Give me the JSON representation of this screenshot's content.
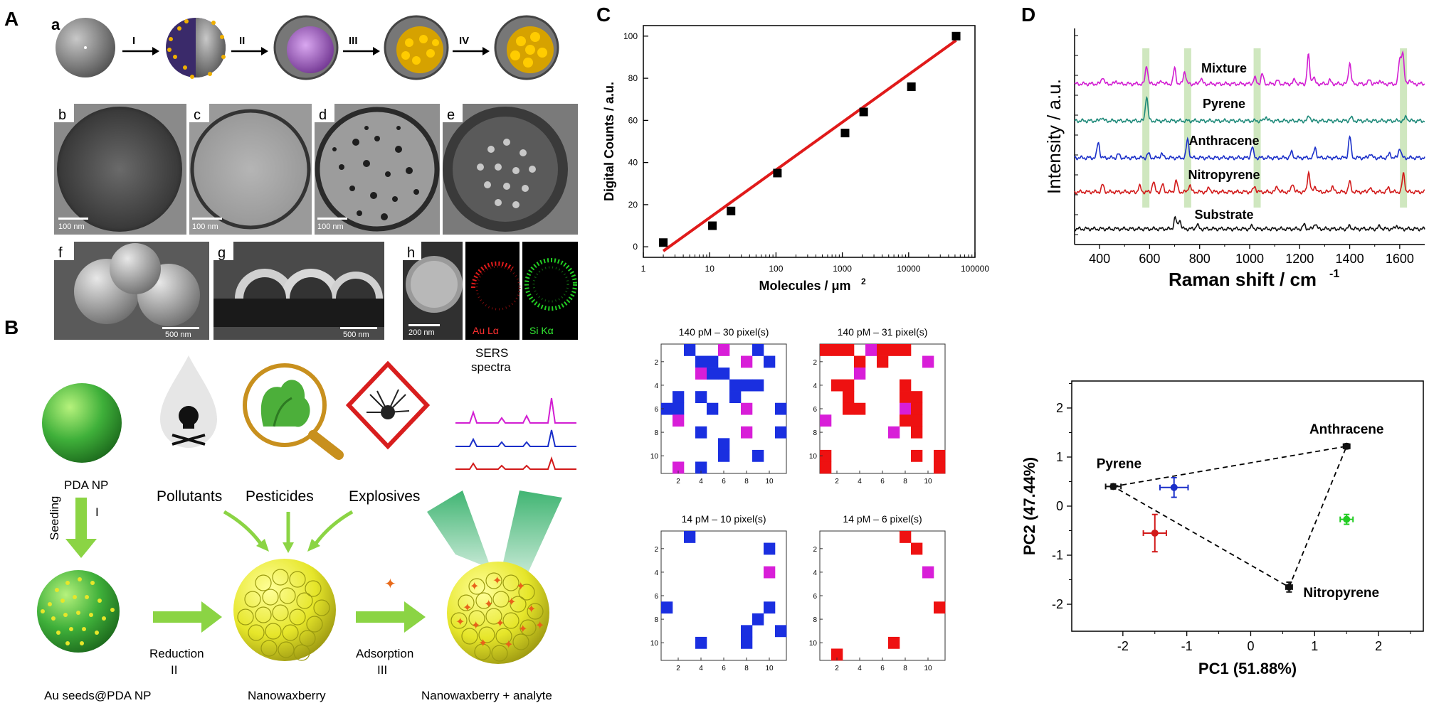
{
  "figure": {
    "panel_labels": [
      "A",
      "B",
      "C",
      "D"
    ]
  },
  "panel_a": {
    "sub_labels": [
      "a",
      "b",
      "c",
      "d",
      "e",
      "f",
      "g",
      "h"
    ],
    "steps": [
      "I",
      "II",
      "III",
      "IV"
    ],
    "scale_bars": [
      "100 nm",
      "100 nm",
      "100 nm",
      "500 nm",
      "500 nm",
      "200 nm"
    ],
    "map_labels": [
      "Au Lα",
      "Si Kα"
    ]
  },
  "panel_b": {
    "sers_title_1": "SERS",
    "sers_title_2": "spectra",
    "pda_np": "PDA NP",
    "seeding": "Seeding",
    "step_i": "I",
    "pollutants": "Pollutants",
    "pesticides": "Pesticides",
    "explosives": "Explosives",
    "reduction": "Reduction",
    "step_ii": "II",
    "adsorption": "Adsorption",
    "step_iii": "III",
    "au_seeds": "Au seeds@PDA NP",
    "nanowaxberry": "Nanowaxberry",
    "nanowaxberry_analyte": "Nanowaxberry + analyte",
    "colors": {
      "green": "#3fb03a",
      "yellow": "#e6e62a",
      "arrow": "#8bd444"
    }
  },
  "chart_data": [
    {
      "type": "scatter",
      "title": "",
      "xlabel_main": "Molecules / μm",
      "xlabel_sup": "2",
      "ylabel": "Digital Counts / a.u.",
      "xscale": "log",
      "xlim": [
        1,
        100000
      ],
      "ylim": [
        -5,
        105
      ],
      "xticks": [
        1,
        10,
        100,
        1000,
        10000,
        100000
      ],
      "xtick_labels": [
        "1",
        "10",
        "100",
        "1000",
        "10000",
        "100000"
      ],
      "yticks": [
        0,
        20,
        40,
        60,
        80,
        100
      ],
      "ytick_labels": [
        "0",
        "20",
        "40",
        "60",
        "80",
        "100"
      ],
      "x": [
        2,
        11,
        21,
        105,
        1100,
        2100,
        11000,
        52000
      ],
      "y": [
        2,
        10,
        17,
        35,
        54,
        64,
        76,
        100
      ],
      "fit_line": {
        "x": [
          2,
          52000
        ],
        "y": [
          -2,
          98
        ],
        "color": "#e01a1a"
      }
    },
    {
      "type": "heatmap",
      "title": "140 pM – 30 pixel(s)",
      "tick_labels": [
        "2",
        "4",
        "6",
        "8",
        "10"
      ],
      "cells": [
        {
          "c": 3,
          "r": 1,
          "k": "b"
        },
        {
          "c": 4,
          "r": 2,
          "k": "b"
        },
        {
          "c": 5,
          "r": 2,
          "k": "b"
        },
        {
          "c": 6,
          "r": 1,
          "k": "m"
        },
        {
          "c": 8,
          "r": 2,
          "k": "m"
        },
        {
          "c": 9,
          "r": 1,
          "k": "b"
        },
        {
          "c": 10,
          "r": 2,
          "k": "b"
        },
        {
          "c": 4,
          "r": 3,
          "k": "m"
        },
        {
          "c": 5,
          "r": 3,
          "k": "b"
        },
        {
          "c": 6,
          "r": 3,
          "k": "b"
        },
        {
          "c": 7,
          "r": 4,
          "k": "b"
        },
        {
          "c": 8,
          "r": 4,
          "k": "b"
        },
        {
          "c": 2,
          "r": 5,
          "k": "b"
        },
        {
          "c": 4,
          "r": 5,
          "k": "b"
        },
        {
          "c": 7,
          "r": 5,
          "k": "b"
        },
        {
          "c": 9,
          "r": 4,
          "k": "b"
        },
        {
          "c": 1,
          "r": 6,
          "k": "b"
        },
        {
          "c": 2,
          "r": 6,
          "k": "b"
        },
        {
          "c": 5,
          "r": 6,
          "k": "b"
        },
        {
          "c": 8,
          "r": 6,
          "k": "m"
        },
        {
          "c": 11,
          "r": 6,
          "k": "b"
        },
        {
          "c": 2,
          "r": 7,
          "k": "m"
        },
        {
          "c": 4,
          "r": 8,
          "k": "b"
        },
        {
          "c": 8,
          "r": 8,
          "k": "m"
        },
        {
          "c": 11,
          "r": 8,
          "k": "b"
        },
        {
          "c": 6,
          "r": 9,
          "k": "b"
        },
        {
          "c": 6,
          "r": 10,
          "k": "b"
        },
        {
          "c": 9,
          "r": 10,
          "k": "b"
        },
        {
          "c": 2,
          "r": 11,
          "k": "m"
        },
        {
          "c": 4,
          "r": 11,
          "k": "b"
        }
      ]
    },
    {
      "type": "heatmap",
      "title": "140 pM – 31 pixel(s)",
      "tick_labels": [
        "2",
        "4",
        "6",
        "8",
        "10"
      ],
      "cells": [
        {
          "c": 1,
          "r": 1,
          "k": "r"
        },
        {
          "c": 2,
          "r": 1,
          "k": "r"
        },
        {
          "c": 3,
          "r": 1,
          "k": "r"
        },
        {
          "c": 5,
          "r": 1,
          "k": "m"
        },
        {
          "c": 6,
          "r": 1,
          "k": "r"
        },
        {
          "c": 7,
          "r": 1,
          "k": "r"
        },
        {
          "c": 8,
          "r": 1,
          "k": "r"
        },
        {
          "c": 4,
          "r": 2,
          "k": "r"
        },
        {
          "c": 6,
          "r": 2,
          "k": "r"
        },
        {
          "c": 10,
          "r": 2,
          "k": "m"
        },
        {
          "c": 4,
          "r": 3,
          "k": "m"
        },
        {
          "c": 2,
          "r": 4,
          "k": "r"
        },
        {
          "c": 3,
          "r": 4,
          "k": "r"
        },
        {
          "c": 8,
          "r": 4,
          "k": "r"
        },
        {
          "c": 3,
          "r": 5,
          "k": "r"
        },
        {
          "c": 8,
          "r": 5,
          "k": "r"
        },
        {
          "c": 9,
          "r": 5,
          "k": "r"
        },
        {
          "c": 3,
          "r": 6,
          "k": "r"
        },
        {
          "c": 4,
          "r": 6,
          "k": "r"
        },
        {
          "c": 8,
          "r": 6,
          "k": "m"
        },
        {
          "c": 9,
          "r": 6,
          "k": "r"
        },
        {
          "c": 1,
          "r": 7,
          "k": "m"
        },
        {
          "c": 8,
          "r": 7,
          "k": "r"
        },
        {
          "c": 9,
          "r": 7,
          "k": "r"
        },
        {
          "c": 7,
          "r": 8,
          "k": "m"
        },
        {
          "c": 9,
          "r": 8,
          "k": "r"
        },
        {
          "c": 1,
          "r": 10,
          "k": "r"
        },
        {
          "c": 9,
          "r": 10,
          "k": "r"
        },
        {
          "c": 11,
          "r": 10,
          "k": "r"
        },
        {
          "c": 1,
          "r": 11,
          "k": "r"
        },
        {
          "c": 11,
          "r": 11,
          "k": "r"
        }
      ]
    },
    {
      "type": "heatmap",
      "title": "14 pM – 10 pixel(s)",
      "tick_labels": [
        "2",
        "4",
        "6",
        "8",
        "10"
      ],
      "cells": [
        {
          "c": 3,
          "r": 1,
          "k": "b"
        },
        {
          "c": 10,
          "r": 2,
          "k": "b"
        },
        {
          "c": 10,
          "r": 4,
          "k": "m"
        },
        {
          "c": 1,
          "r": 7,
          "k": "b"
        },
        {
          "c": 10,
          "r": 7,
          "k": "b"
        },
        {
          "c": 9,
          "r": 8,
          "k": "b"
        },
        {
          "c": 8,
          "r": 9,
          "k": "b"
        },
        {
          "c": 11,
          "r": 9,
          "k": "b"
        },
        {
          "c": 8,
          "r": 10,
          "k": "b"
        },
        {
          "c": 4,
          "r": 10,
          "k": "b"
        }
      ]
    },
    {
      "type": "heatmap",
      "title": "14 pM – 6 pixel(s)",
      "tick_labels": [
        "2",
        "4",
        "6",
        "8",
        "10"
      ],
      "cells": [
        {
          "c": 8,
          "r": 1,
          "k": "r"
        },
        {
          "c": 9,
          "r": 2,
          "k": "r"
        },
        {
          "c": 10,
          "r": 4,
          "k": "m"
        },
        {
          "c": 11,
          "r": 7,
          "k": "r"
        },
        {
          "c": 7,
          "r": 10,
          "k": "r"
        },
        {
          "c": 2,
          "r": 11,
          "k": "r"
        }
      ]
    },
    {
      "type": "line",
      "ylabel": "Intensity / a.u.",
      "xlabel_main": "Raman shift / cm",
      "xlabel_sup": "-1",
      "xlim": [
        300,
        1700
      ],
      "xticks": [
        400,
        600,
        800,
        1000,
        1200,
        1400,
        1600
      ],
      "xtick_labels": [
        "400",
        "600",
        "800",
        "1000",
        "1200",
        "1400",
        "1600"
      ],
      "highlight_bands": [
        585,
        752,
        1030,
        1615
      ],
      "series": [
        {
          "name": "Mixture",
          "color": "#d21ed2",
          "baseline": 118,
          "peaks": [
            [
              412,
              10
            ],
            [
              468,
              4
            ],
            [
              588,
              26
            ],
            [
              648,
              5
            ],
            [
              700,
              22
            ],
            [
              740,
              18
            ],
            [
              805,
              8
            ],
            [
              1020,
              9
            ],
            [
              1050,
              14
            ],
            [
              1110,
              5
            ],
            [
              1180,
              6
            ],
            [
              1235,
              40
            ],
            [
              1255,
              10
            ],
            [
              1320,
              5
            ],
            [
              1400,
              30
            ],
            [
              1480,
              6
            ],
            [
              1520,
              5
            ],
            [
              1600,
              34
            ],
            [
              1612,
              44
            ],
            [
              1640,
              6
            ]
          ]
        },
        {
          "name": "Pyrene",
          "color": "#1f8a7a",
          "baseline": 170,
          "peaks": [
            [
              408,
              5
            ],
            [
              588,
              35
            ],
            [
              1065,
              6
            ],
            [
              1238,
              7
            ],
            [
              1405,
              5
            ],
            [
              1626,
              6
            ]
          ]
        },
        {
          "name": "Anthracene",
          "color": "#1a2fc9",
          "baseline": 222,
          "peaks": [
            [
              395,
              22
            ],
            [
              475,
              5
            ],
            [
              595,
              6
            ],
            [
              648,
              6
            ],
            [
              752,
              26
            ],
            [
              1010,
              15
            ],
            [
              1168,
              8
            ],
            [
              1262,
              14
            ],
            [
              1400,
              30
            ],
            [
              1482,
              6
            ],
            [
              1560,
              6
            ],
            [
              1600,
              14
            ]
          ]
        },
        {
          "name": "Nitropyrene",
          "color": "#d21a1a",
          "baseline": 270,
          "peaks": [
            [
              412,
              10
            ],
            [
              560,
              8
            ],
            [
              615,
              14
            ],
            [
              652,
              10
            ],
            [
              706,
              16
            ],
            [
              760,
              10
            ],
            [
              838,
              6
            ],
            [
              1020,
              8
            ],
            [
              1110,
              8
            ],
            [
              1172,
              12
            ],
            [
              1236,
              28
            ],
            [
              1262,
              8
            ],
            [
              1330,
              8
            ],
            [
              1400,
              14
            ],
            [
              1480,
              6
            ],
            [
              1555,
              6
            ],
            [
              1615,
              26
            ]
          ]
        },
        {
          "name": "Substrate",
          "color": "#111111",
          "baseline": 322,
          "peaks": [
            [
              702,
              16
            ],
            [
              720,
              13
            ],
            [
              790,
              6
            ],
            [
              1010,
              4
            ],
            [
              1218,
              6
            ],
            [
              1262,
              8
            ],
            [
              1400,
              4
            ],
            [
              1520,
              4
            ],
            [
              1588,
              5
            ]
          ]
        }
      ]
    },
    {
      "type": "scatter",
      "xlabel": "PC1 (51.88%)",
      "ylabel": "PC2 (47.44%)",
      "xlim": [
        -2.8,
        2.7
      ],
      "ylim": [
        -2.55,
        2.55
      ],
      "xticks": [
        -2,
        -1,
        0,
        1,
        2
      ],
      "xtick_labels": [
        "-2",
        "-1",
        "0",
        "1",
        "2"
      ],
      "yticks": [
        -2,
        -1,
        0,
        1,
        2
      ],
      "ytick_labels": [
        "-2",
        "-1",
        "0",
        "1",
        "2"
      ],
      "points": [
        {
          "name": "Pyrene",
          "x": -2.15,
          "y": 0.4,
          "xerr": 0.12,
          "yerr": 0.05,
          "color": "#111111",
          "label": true,
          "label_pos": "above"
        },
        {
          "name": "Anthracene",
          "x": 1.5,
          "y": 1.22,
          "xerr": 0.05,
          "yerr": 0.05,
          "color": "#111111",
          "label": true,
          "label_pos": "above"
        },
        {
          "name": "Nitropyrene",
          "x": 0.6,
          "y": -1.65,
          "xerr": 0.05,
          "yerr": 0.1,
          "color": "#111111",
          "label": true,
          "label_pos": "right"
        },
        {
          "name": "mixture-blue",
          "x": -1.2,
          "y": 0.38,
          "xerr": 0.22,
          "yerr": 0.2,
          "color": "#1a2fc9",
          "label": false
        },
        {
          "name": "mixture-red",
          "x": -1.5,
          "y": -0.55,
          "xerr": 0.18,
          "yerr": 0.38,
          "color": "#d21a1a",
          "label": false
        },
        {
          "name": "mixture-green",
          "x": 1.5,
          "y": -0.27,
          "xerr": 0.1,
          "yerr": 0.1,
          "color": "#22cc22",
          "label": false
        }
      ],
      "triangle": [
        "Pyrene",
        "Anthracene",
        "Nitropyrene"
      ]
    }
  ]
}
